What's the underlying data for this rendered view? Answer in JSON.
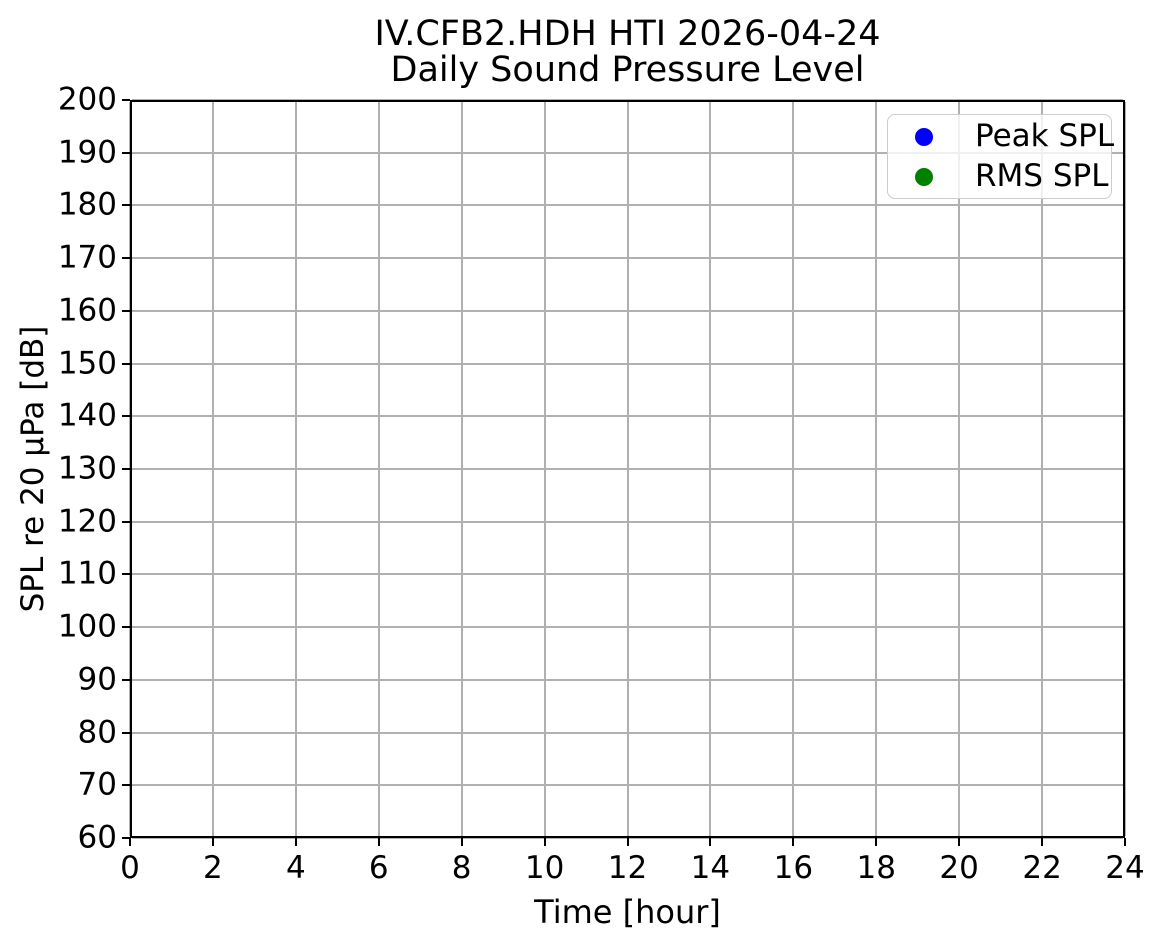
{
  "chart_data": {
    "type": "scatter",
    "title": "IV.CFB2.HDH HTI 2026-04-24",
    "subtitle": "Daily Sound Pressure Level",
    "xlabel": "Time [hour]",
    "ylabel": "SPL re 20 µPa [dB]",
    "xlim": [
      0,
      24
    ],
    "ylim": [
      60,
      200
    ],
    "xticks": [
      0,
      2,
      4,
      6,
      8,
      10,
      12,
      14,
      16,
      18,
      20,
      22,
      24
    ],
    "yticks": [
      60,
      70,
      80,
      90,
      100,
      110,
      120,
      130,
      140,
      150,
      160,
      170,
      180,
      190,
      200
    ],
    "grid": true,
    "grid_color": "#b0b0b0",
    "axis_color": "#000000",
    "legend": {
      "position": "upper-right",
      "entries": [
        {
          "label": "Peak SPL",
          "color": "#0000ff",
          "marker": "circle-icon"
        },
        {
          "label": "RMS SPL",
          "color": "#008000",
          "marker": "circle-icon"
        }
      ]
    },
    "series": [
      {
        "name": "Peak SPL",
        "color": "#0000ff",
        "points": []
      },
      {
        "name": "RMS SPL",
        "color": "#008000",
        "points": []
      }
    ]
  }
}
